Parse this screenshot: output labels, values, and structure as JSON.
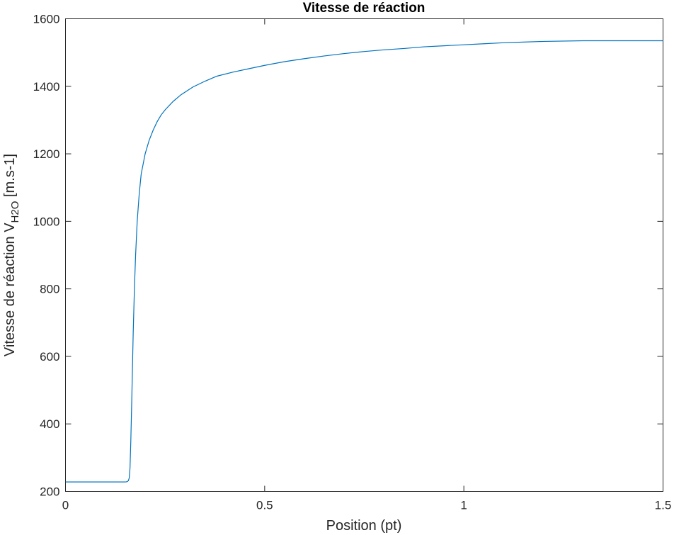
{
  "chart_data": {
    "type": "line",
    "title": "Vitesse de réaction",
    "xlabel": "Position (pt)",
    "ylabel": {
      "prefix": "Vitesse de réaction V",
      "subscript": "H2O",
      "suffix": " [m.s-1]"
    },
    "xlim": [
      0,
      1.5
    ],
    "ylim": [
      200,
      1600
    ],
    "xticks": [
      0,
      0.5,
      1,
      1.5
    ],
    "xtick_labels": [
      "0",
      "0.5",
      "1",
      "1.5"
    ],
    "yticks": [
      200,
      400,
      600,
      800,
      1000,
      1200,
      1400,
      1600
    ],
    "ytick_labels": [
      "200",
      "400",
      "600",
      "800",
      "1000",
      "1200",
      "1400",
      "1600"
    ],
    "grid": false,
    "box": true,
    "series": [
      {
        "color": "#0072bd",
        "x": [
          0,
          0.1,
          0.15,
          0.155,
          0.158,
          0.16,
          0.162,
          0.164,
          0.166,
          0.168,
          0.17,
          0.173,
          0.176,
          0.18,
          0.185,
          0.19,
          0.2,
          0.21,
          0.22,
          0.23,
          0.24,
          0.25,
          0.27,
          0.29,
          0.32,
          0.35,
          0.38,
          0.42,
          0.46,
          0.5,
          0.55,
          0.6,
          0.65,
          0.7,
          0.75,
          0.8,
          0.85,
          0.9,
          0.95,
          1.0,
          1.05,
          1.1,
          1.15,
          1.2,
          1.3,
          1.4,
          1.5
        ],
        "y": [
          228,
          228,
          228,
          229,
          232,
          240,
          270,
          350,
          450,
          560,
          670,
          800,
          900,
          1000,
          1080,
          1140,
          1200,
          1240,
          1270,
          1295,
          1315,
          1330,
          1355,
          1375,
          1398,
          1415,
          1430,
          1442,
          1452,
          1462,
          1473,
          1482,
          1490,
          1497,
          1503,
          1508,
          1512,
          1517,
          1520,
          1523,
          1526,
          1529,
          1531,
          1533,
          1535,
          1535,
          1535
        ]
      }
    ]
  }
}
